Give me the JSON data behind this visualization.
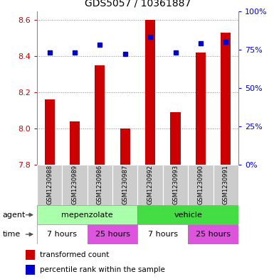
{
  "title": "GDS5057 / 10361887",
  "samples": [
    "GSM1230988",
    "GSM1230989",
    "GSM1230986",
    "GSM1230987",
    "GSM1230992",
    "GSM1230993",
    "GSM1230990",
    "GSM1230991"
  ],
  "bar_values": [
    8.16,
    8.04,
    8.35,
    8.0,
    8.6,
    8.09,
    8.42,
    8.53
  ],
  "bar_base": 7.8,
  "percentile_values": [
    73,
    73,
    78,
    72,
    83,
    73,
    79,
    80
  ],
  "bar_color": "#cc0000",
  "dot_color": "#0000cc",
  "ylim_left": [
    7.8,
    8.65
  ],
  "ylim_right": [
    0,
    100
  ],
  "yticks_left": [
    7.8,
    8.0,
    8.2,
    8.4,
    8.6
  ],
  "yticks_right": [
    0,
    25,
    50,
    75,
    100
  ],
  "left_tick_color": "#cc0000",
  "right_tick_color": "#0000cc",
  "agent_labels": [
    {
      "label": "mepenzolate",
      "start": 0,
      "end": 4,
      "color": "#aaffaa"
    },
    {
      "label": "vehicle",
      "start": 4,
      "end": 8,
      "color": "#44dd44"
    }
  ],
  "time_labels": [
    {
      "label": "7 hours",
      "start": 0,
      "end": 2,
      "color": "#ffffff"
    },
    {
      "label": "25 hours",
      "start": 2,
      "end": 4,
      "color": "#dd55dd"
    },
    {
      "label": "7 hours",
      "start": 4,
      "end": 6,
      "color": "#ffffff"
    },
    {
      "label": "25 hours",
      "start": 6,
      "end": 8,
      "color": "#dd55dd"
    }
  ],
  "sample_bg_color": "#cccccc",
  "grid_color": "#888888",
  "bar_width": 0.4,
  "legend_red_label": "transformed count",
  "legend_blue_label": "percentile rank within the sample"
}
